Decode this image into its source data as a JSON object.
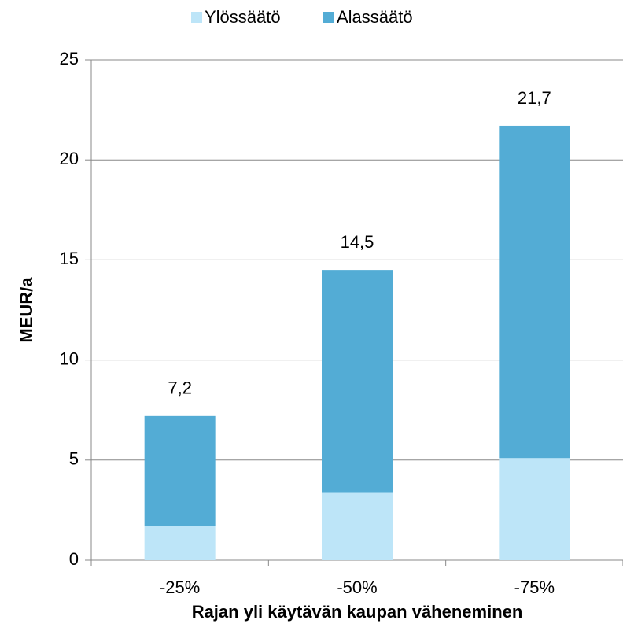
{
  "chart_data": {
    "type": "stacked_bar",
    "xlabel": "Rajan yli käytävän kaupan väheneminen",
    "ylabel": "MEUR/a",
    "categories": [
      "-25%",
      "-50%",
      "-75%"
    ],
    "series": [
      {
        "name": "Ylössäätö",
        "color": "#bde5f8",
        "values": [
          1.7,
          3.4,
          5.1
        ]
      },
      {
        "name": "Alassäätö",
        "color": "#53acd5",
        "values": [
          5.5,
          11.1,
          16.6
        ]
      }
    ],
    "totals": [
      7.2,
      14.5,
      21.7
    ],
    "total_labels": [
      "7,2",
      "14,5",
      "21,7"
    ],
    "ylim": [
      0,
      25
    ],
    "yticks": [
      0,
      5,
      10,
      15,
      20,
      25
    ],
    "grid": true,
    "legend": "top"
  }
}
